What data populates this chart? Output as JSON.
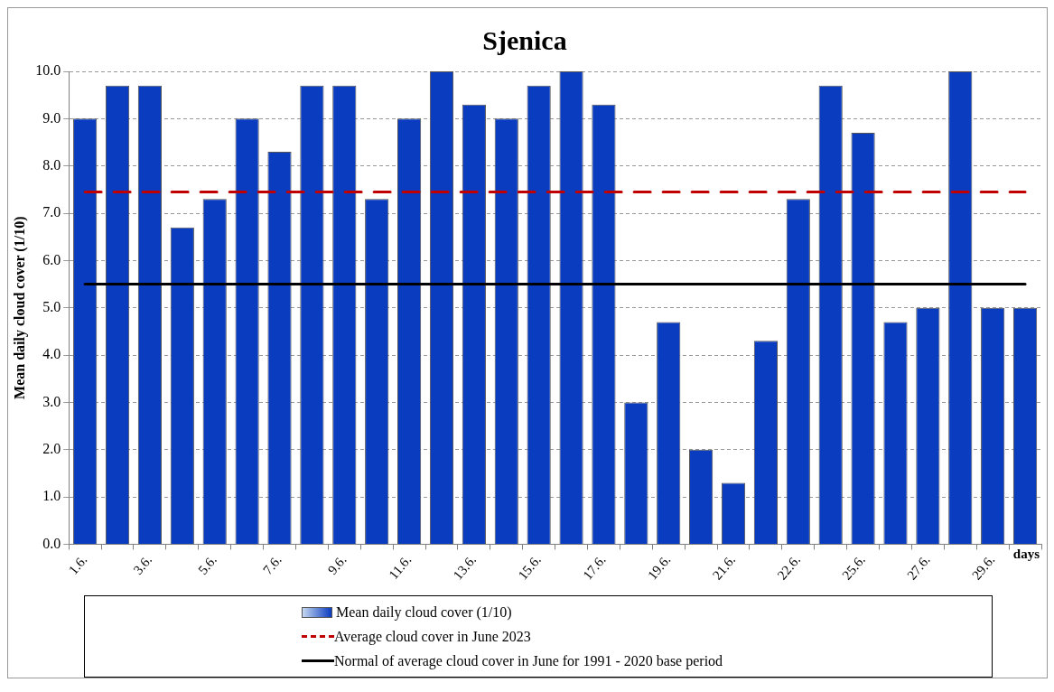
{
  "chart_data": {
    "type": "bar",
    "title": "Sjenica",
    "xlabel": "days",
    "ylabel": "Mean daily cloud cover (1/10)",
    "categories": [
      "1.6.",
      null,
      "3.6.",
      null,
      "5.6.",
      null,
      "7.6.",
      null,
      "9.6.",
      null,
      "11.6.",
      null,
      "13.6.",
      null,
      "15.6.",
      null,
      "17.6.",
      null,
      "19.6.",
      null,
      "21.6.",
      null,
      "22.6.",
      null,
      "25.6.",
      null,
      "27.6.",
      null,
      "29.6.",
      null
    ],
    "series": [
      {
        "name": "Mean daily cloud cover (1/10)",
        "color": "#0a3cc0",
        "values": [
          9.0,
          9.7,
          9.7,
          6.7,
          7.3,
          9.0,
          8.3,
          9.7,
          9.7,
          7.3,
          9.0,
          10.0,
          9.3,
          9.0,
          9.7,
          10.0,
          9.3,
          3.0,
          4.7,
          2.0,
          1.3,
          4.3,
          7.3,
          9.7,
          8.7,
          4.7,
          5.0,
          10.0,
          5.0,
          5.0
        ]
      }
    ],
    "ylim": [
      0,
      10
    ],
    "yticks": [
      {
        "value": 0,
        "label": "0.0"
      },
      {
        "value": 1,
        "label": "1.0"
      },
      {
        "value": 2,
        "label": "2.0"
      },
      {
        "value": 3,
        "label": "3.0"
      },
      {
        "value": 4,
        "label": "4.0"
      },
      {
        "value": 5,
        "label": "5.0"
      },
      {
        "value": 6,
        "label": "6.0"
      },
      {
        "value": 7,
        "label": "7.0"
      },
      {
        "value": 8,
        "label": "8.0"
      },
      {
        "value": 9,
        "label": "9.0"
      },
      {
        "value": 10,
        "label": "10.0"
      }
    ],
    "grid": "y",
    "legend": "bottom",
    "ref_lines": [
      {
        "axis": "y",
        "value": 7.45,
        "label": "Average cloud cover in June 2023",
        "color": "#c00000",
        "line_style": "dashed"
      },
      {
        "axis": "y",
        "value": 5.5,
        "label": "Normal of average cloud cover in June for 1991 - 2020 base period",
        "color": "#000000",
        "line_style": "solid"
      }
    ]
  }
}
